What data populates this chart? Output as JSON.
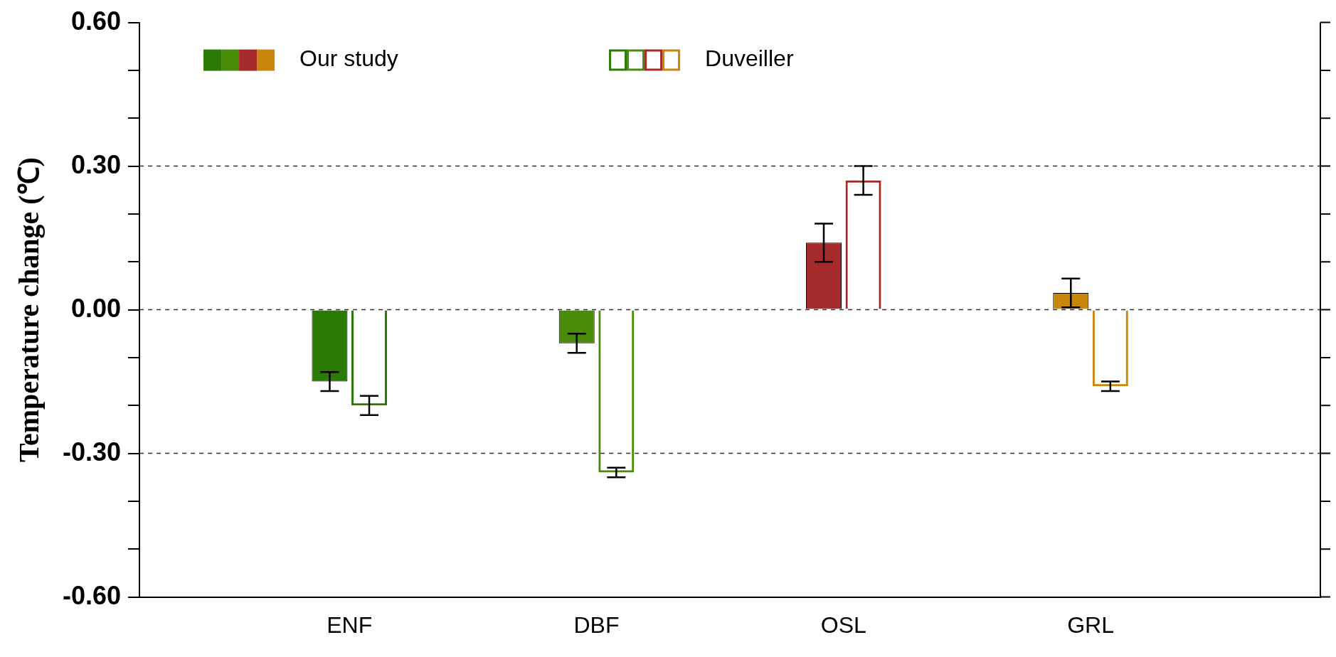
{
  "chart_data": {
    "type": "bar",
    "ylabel": "Temperature change (℃)",
    "categories": [
      "ENF",
      "DBF",
      "OSL",
      "GRL"
    ],
    "series": [
      {
        "name": "Our study",
        "colors": [
          "#2a7a05",
          "#4a8c0a",
          "#a52a2a",
          "#c8860a"
        ],
        "values": [
          -0.15,
          -0.07,
          0.14,
          0.035
        ],
        "errors": [
          [
            -0.17,
            -0.13
          ],
          [
            -0.09,
            -0.05
          ],
          [
            0.1,
            0.18
          ],
          [
            0.005,
            0.065
          ]
        ]
      },
      {
        "name": "Duveiller",
        "colors": [
          "#2a7a05",
          "#4a8c0a",
          "#a52a2a",
          "#c8860a"
        ],
        "values": [
          -0.2,
          -0.34,
          0.27,
          -0.16
        ],
        "errors": [
          [
            -0.22,
            -0.18
          ],
          [
            -0.35,
            -0.33
          ],
          [
            0.24,
            0.3
          ],
          [
            -0.17,
            -0.15
          ]
        ]
      }
    ],
    "ylim": [
      -0.6,
      0.6
    ],
    "yticks": [
      {
        "value": -0.6,
        "label": "-0.60"
      },
      {
        "value": -0.5,
        "label": null
      },
      {
        "value": -0.4,
        "label": null
      },
      {
        "value": -0.3,
        "label": "-0.30"
      },
      {
        "value": -0.2,
        "label": null
      },
      {
        "value": -0.1,
        "label": null
      },
      {
        "value": 0,
        "label": "0.00"
      },
      {
        "value": 0.1,
        "label": null
      },
      {
        "value": 0.2,
        "label": null
      },
      {
        "value": 0.3,
        "label": "0.30"
      },
      {
        "value": 0.4,
        "label": null
      },
      {
        "value": 0.5,
        "label": null
      },
      {
        "value": 0.6,
        "label": "0.60"
      }
    ],
    "ref_lines": [
      {
        "axis": "y",
        "value": 0.3,
        "line_style": "dashed"
      },
      {
        "axis": "y",
        "value": 0,
        "line_style": "dashed"
      },
      {
        "axis": "y",
        "value": -0.3,
        "line_style": "dashed"
      }
    ],
    "legend": "top left"
  }
}
